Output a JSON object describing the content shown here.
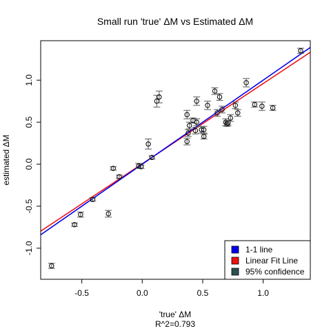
{
  "chart_data": {
    "type": "scatter",
    "title": "Small run 'true' ΔM vs Estimated ΔM",
    "xlabel": "'true' ΔM",
    "ylabel": "estimated ΔM",
    "caption": "R^2=0.793",
    "xlim": [
      -0.84,
      1.39
    ],
    "ylim": [
      -1.37,
      1.47
    ],
    "x_ticks": [
      -0.5,
      0.0,
      0.5,
      1.0
    ],
    "x_tick_labels": [
      "-0.5",
      "0.0",
      "0.5",
      "1.0"
    ],
    "y_ticks": [
      -1.0,
      -0.5,
      0.0,
      0.5,
      1.0
    ],
    "y_tick_labels": [
      "-1.0",
      "-0.5",
      "0.0",
      "0.5",
      "1.0"
    ],
    "grid": false,
    "legend_position": "bottom-right",
    "legend": [
      {
        "label": "1-1 line",
        "color": "#0000ee"
      },
      {
        "label": "Linear Fit Line",
        "color": "#ee1111"
      },
      {
        "label": "95% confidence",
        "color": "#2f4f4f"
      }
    ],
    "lines": {
      "identity": {
        "slope": 1.0,
        "intercept": 0.0,
        "color": "#0000ee"
      },
      "fit": {
        "slope": 0.955,
        "intercept": 0.005,
        "color": "#ee1111"
      }
    },
    "points": [
      {
        "x": -0.75,
        "y": -1.21,
        "err": 0.03
      },
      {
        "x": -0.56,
        "y": -0.72,
        "err": 0.02
      },
      {
        "x": -0.51,
        "y": -0.6,
        "err": 0.03
      },
      {
        "x": -0.41,
        "y": -0.42,
        "err": 0.02
      },
      {
        "x": -0.28,
        "y": -0.59,
        "err": 0.04
      },
      {
        "x": -0.24,
        "y": -0.05,
        "err": 0.02
      },
      {
        "x": -0.19,
        "y": -0.15,
        "err": 0.02
      },
      {
        "x": -0.03,
        "y": -0.02,
        "err": 0.03
      },
      {
        "x": -0.01,
        "y": -0.03,
        "err": 0.02
      },
      {
        "x": 0.05,
        "y": 0.24,
        "err": 0.06
      },
      {
        "x": 0.08,
        "y": 0.08,
        "err": 0.02
      },
      {
        "x": 0.12,
        "y": 0.75,
        "err": 0.07
      },
      {
        "x": 0.14,
        "y": 0.8,
        "err": 0.07
      },
      {
        "x": 0.37,
        "y": 0.27,
        "err": 0.04
      },
      {
        "x": 0.37,
        "y": 0.59,
        "err": 0.05
      },
      {
        "x": 0.38,
        "y": 0.37,
        "err": 0.04
      },
      {
        "x": 0.39,
        "y": 0.46,
        "err": 0.04
      },
      {
        "x": 0.42,
        "y": 0.52,
        "err": 0.03
      },
      {
        "x": 0.44,
        "y": 0.4,
        "err": 0.04
      },
      {
        "x": 0.45,
        "y": 0.5,
        "err": 0.04
      },
      {
        "x": 0.45,
        "y": 0.75,
        "err": 0.05
      },
      {
        "x": 0.49,
        "y": 0.41,
        "err": 0.04
      },
      {
        "x": 0.51,
        "y": 0.41,
        "err": 0.04
      },
      {
        "x": 0.51,
        "y": 0.33,
        "err": 0.03
      },
      {
        "x": 0.54,
        "y": 0.7,
        "err": 0.05
      },
      {
        "x": 0.6,
        "y": 0.87,
        "err": 0.04
      },
      {
        "x": 0.62,
        "y": 0.61,
        "err": 0.04
      },
      {
        "x": 0.64,
        "y": 0.8,
        "err": 0.04
      },
      {
        "x": 0.66,
        "y": 0.65,
        "err": 0.04
      },
      {
        "x": 0.69,
        "y": 0.5,
        "err": 0.04
      },
      {
        "x": 0.7,
        "y": 0.48,
        "err": 0.03
      },
      {
        "x": 0.71,
        "y": 0.49,
        "err": 0.03
      },
      {
        "x": 0.73,
        "y": 0.55,
        "err": 0.04
      },
      {
        "x": 0.77,
        "y": 0.7,
        "err": 0.04
      },
      {
        "x": 0.79,
        "y": 0.61,
        "err": 0.04
      },
      {
        "x": 0.86,
        "y": 0.97,
        "err": 0.05
      },
      {
        "x": 0.93,
        "y": 0.71,
        "err": 0.03
      },
      {
        "x": 0.99,
        "y": 0.69,
        "err": 0.05
      },
      {
        "x": 1.08,
        "y": 0.67,
        "err": 0.03
      },
      {
        "x": 1.31,
        "y": 1.35,
        "err": 0.03
      }
    ]
  }
}
